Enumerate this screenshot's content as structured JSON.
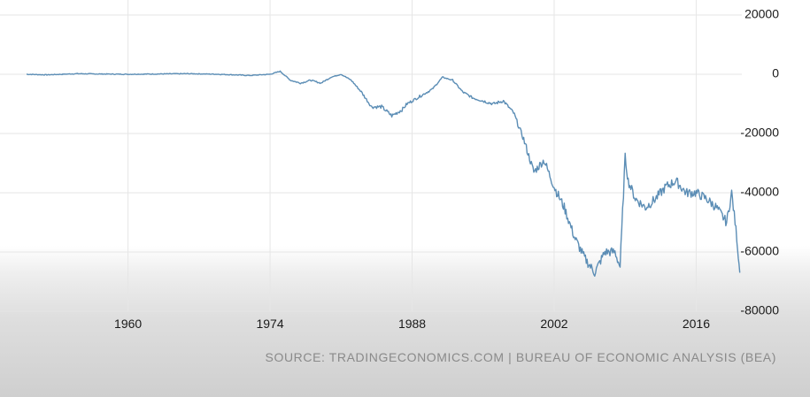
{
  "chart_data": {
    "type": "line",
    "title": "",
    "xlabel": "",
    "ylabel": "",
    "xlim": [
      1950,
      2020.5
    ],
    "ylim": [
      -80000,
      20000
    ],
    "x_ticks": [
      "1960",
      "1974",
      "1988",
      "2002",
      "2016"
    ],
    "y_ticks": [
      "20000",
      "0",
      "-20000",
      "-40000",
      "-60000",
      "-80000"
    ],
    "grid": true,
    "legend": "none",
    "line_color": "#5b8db5",
    "series": [
      {
        "x": [
          1950,
          1952,
          1955,
          1957,
          1960,
          1963,
          1966,
          1969,
          1972,
          1974,
          1975,
          1976,
          1977,
          1978,
          1979,
          1980,
          1981,
          1982,
          1983,
          1984,
          1985,
          1986,
          1987,
          1987.5,
          1988,
          1989,
          1990,
          1991,
          1992,
          1993,
          1994,
          1995,
          1996,
          1997,
          1998,
          1999,
          2000,
          2001,
          2002,
          2003,
          2004,
          2005,
          2006,
          2007,
          2008,
          2008.5,
          2009,
          2009.3,
          2010,
          2011,
          2012,
          2013,
          2014,
          2015,
          2016,
          2017,
          2018,
          2019,
          2019.5,
          2020,
          2020.3
        ],
        "values": [
          0,
          -200,
          200,
          100,
          0,
          100,
          200,
          0,
          -400,
          0,
          1000,
          -2000,
          -3000,
          -2000,
          -3000,
          -1000,
          0,
          -2000,
          -6000,
          -11000,
          -11000,
          -14000,
          -12000,
          -10000,
          -9000,
          -7000,
          -5000,
          -1000,
          -2000,
          -6000,
          -8000,
          -9000,
          -10000,
          -9000,
          -13000,
          -22000,
          -33000,
          -29000,
          -38000,
          -45000,
          -55000,
          -62000,
          -67000,
          -60000,
          -60000,
          -65000,
          -28000,
          -36000,
          -42000,
          -45000,
          -42000,
          -38000,
          -36000,
          -40000,
          -40000,
          -42000,
          -45000,
          -50000,
          -40000,
          -55000,
          -67000
        ]
      }
    ]
  },
  "source_text": "SOURCE: TRADINGECONOMICS.COM | BUREAU OF ECONOMIC ANALYSIS (BEA)"
}
